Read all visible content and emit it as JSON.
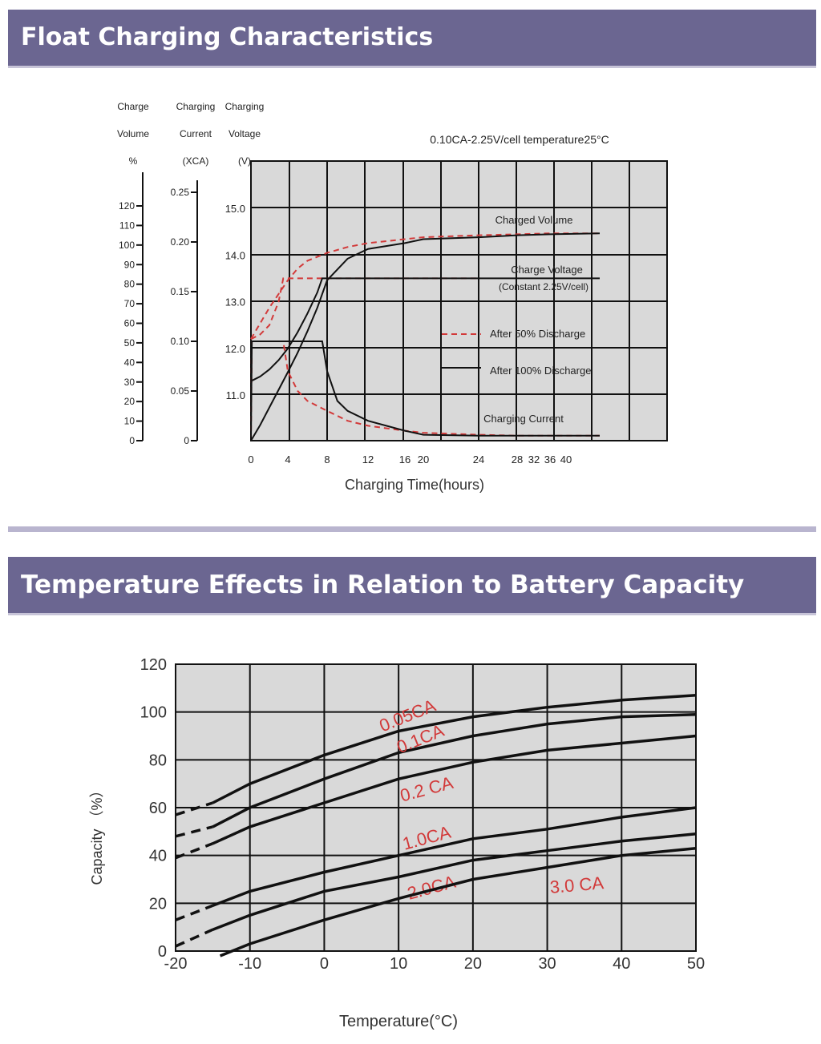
{
  "sections": {
    "float_title": "Float Charging Characteristics",
    "temp_title": "Temperature Effects in Relation to Battery Capacity"
  },
  "colors": {
    "banner": "#6b6691",
    "plot_bg": "#d9d9d9",
    "red": "#d23a3a",
    "black": "#111111"
  },
  "chart_data": [
    {
      "type": "line",
      "title": "",
      "condition": "0.10CA-2.25V/cell temperature25°C",
      "xlabel": "Charging Time(hours)",
      "x_ticks": [
        "0",
        "4",
        "8",
        "12",
        "16",
        "20",
        "24",
        "28",
        "32",
        "36",
        "40"
      ],
      "axes": {
        "charge_volume": {
          "title": [
            "Charge",
            "Volume",
            "%"
          ],
          "ticks": [
            "0",
            "10",
            "20",
            "30",
            "40",
            "50",
            "60",
            "70",
            "80",
            "90",
            "100",
            "110",
            "120"
          ]
        },
        "charging_current": {
          "title": [
            "Charging",
            "Current",
            "(XCA)"
          ],
          "ticks": [
            "0",
            "0.05",
            "0.10",
            "0.15",
            "0.20",
            "0.25"
          ]
        },
        "charging_voltage": {
          "title": [
            "Charging",
            "Voltage",
            "(V)"
          ],
          "ticks": [
            "11.0",
            "12.0",
            "13.0",
            "14.0",
            "15.0"
          ]
        }
      },
      "annotations": {
        "charged_volume": "Charged Volume",
        "charge_voltage_1": "Charge Voltage",
        "charge_voltage_2": "(Constant 2.25V/cell)",
        "charging_current": "Charging Current",
        "legend_dashed": "After 50% Discharge",
        "legend_solid": "After 100% Discharge"
      },
      "series": [
        {
          "key": "volume_50",
          "style": "dashed",
          "x": [
            0,
            1,
            2,
            3,
            4,
            5,
            6,
            8,
            10,
            12,
            16,
            20,
            24,
            28,
            36,
            40
          ],
          "y": [
            52,
            60,
            68,
            75,
            82,
            88,
            92,
            96,
            99,
            101,
            103,
            104,
            105,
            105.5,
            106,
            106
          ]
        },
        {
          "key": "volume_100",
          "style": "solid",
          "x": [
            0,
            1,
            2,
            3,
            4,
            5,
            6,
            7,
            8,
            10,
            12,
            16,
            20,
            24,
            28,
            36,
            40
          ],
          "y": [
            0,
            8,
            17,
            26,
            35,
            45,
            56,
            68,
            82,
            93,
            98,
            101,
            103,
            104,
            105,
            105.5,
            106
          ]
        },
        {
          "key": "voltage_50",
          "style": "dashed",
          "x": [
            0,
            1,
            2,
            3,
            3.5,
            4,
            8,
            12,
            20,
            24
          ],
          "y": [
            12.2,
            12.3,
            12.5,
            13.0,
            13.5,
            13.5,
            13.5,
            13.5,
            13.5,
            13.5
          ]
        },
        {
          "key": "voltage_100",
          "style": "solid",
          "x": [
            0,
            1,
            2,
            3,
            4,
            5,
            6,
            7,
            7.5,
            8,
            12,
            20,
            24,
            28,
            36,
            40
          ],
          "y": [
            11.3,
            11.4,
            11.55,
            11.75,
            12.0,
            12.35,
            12.75,
            13.2,
            13.5,
            13.5,
            13.5,
            13.5,
            13.5,
            13.5,
            13.5,
            13.5
          ]
        },
        {
          "key": "current_50",
          "style": "dashed",
          "x": [
            0,
            0.1,
            2,
            3,
            3.5,
            4,
            5,
            6,
            8,
            10,
            12,
            16,
            20,
            24,
            28,
            36,
            40
          ],
          "y": [
            0,
            0.1,
            0.1,
            0.1,
            0.1,
            0.07,
            0.05,
            0.04,
            0.03,
            0.02,
            0.015,
            0.01,
            0.008,
            0.006,
            0.005,
            0.005,
            0.005
          ]
        },
        {
          "key": "current_100",
          "style": "solid",
          "x": [
            0,
            0.1,
            4,
            7.5,
            8,
            9,
            10,
            12,
            16,
            20,
            24,
            28,
            36,
            40
          ],
          "y": [
            0,
            0.1,
            0.1,
            0.1,
            0.07,
            0.04,
            0.03,
            0.02,
            0.01,
            0.006,
            0.005,
            0.005,
            0.005,
            0.005
          ]
        }
      ]
    },
    {
      "type": "line",
      "title": "",
      "xlabel": "Temperature(°C)",
      "ylabel": "Capacity （%）",
      "xlim": [
        -20,
        50
      ],
      "ylim": [
        0,
        120
      ],
      "x_ticks": [
        "-20",
        "-10",
        "0",
        "10",
        "20",
        "30",
        "40",
        "50"
      ],
      "y_ticks": [
        "0",
        "20",
        "40",
        "60",
        "80",
        "100",
        "120"
      ],
      "series": [
        {
          "name": "0.05CA",
          "x": [
            -20,
            -15,
            -10,
            0,
            10,
            20,
            30,
            40,
            50
          ],
          "y": [
            57,
            62,
            70,
            82,
            92,
            98,
            102,
            105,
            107
          ]
        },
        {
          "name": "0.1CA",
          "x": [
            -20,
            -15,
            -10,
            0,
            10,
            20,
            30,
            40,
            50
          ],
          "y": [
            48,
            52,
            60,
            72,
            83,
            90,
            95,
            98,
            99
          ]
        },
        {
          "name": "0.2 CA",
          "x": [
            -20,
            -15,
            -10,
            0,
            10,
            20,
            30,
            40,
            50
          ],
          "y": [
            39,
            45,
            52,
            62,
            72,
            79,
            84,
            87,
            90
          ]
        },
        {
          "name": "1.0CA",
          "x": [
            -20,
            -15,
            -10,
            0,
            10,
            20,
            30,
            40,
            50
          ],
          "y": [
            13,
            19,
            25,
            33,
            40,
            47,
            51,
            56,
            60
          ]
        },
        {
          "name": "2.0CA",
          "x": [
            -20,
            -15,
            -10,
            0,
            10,
            20,
            30,
            40,
            50
          ],
          "y": [
            2,
            9,
            15,
            25,
            31,
            38,
            42,
            46,
            49
          ]
        },
        {
          "name": "3.0 CA",
          "x": [
            -14,
            -10,
            0,
            10,
            20,
            30,
            40,
            50
          ],
          "y": [
            -2,
            3,
            13,
            22,
            30,
            35,
            40,
            43
          ]
        }
      ]
    }
  ]
}
